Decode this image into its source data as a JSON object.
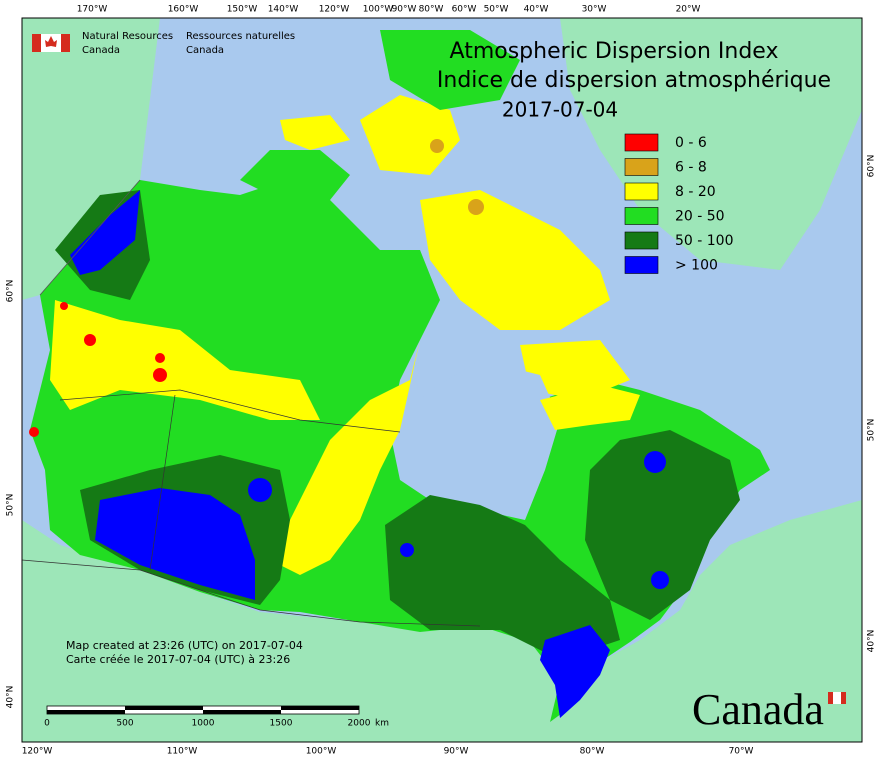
{
  "header": {
    "agency_en": "Natural Resources",
    "agency_en_country": "Canada",
    "agency_fr": "Ressources naturelles",
    "agency_fr_country": "Canada"
  },
  "title": {
    "line1": "Atmospheric Dispersion Index",
    "line2": "Indice de dispersion atmosphérique",
    "date": "2017-07-04"
  },
  "legend": [
    {
      "label": "0 - 6",
      "color": "#ff0000"
    },
    {
      "label": "6 - 8",
      "color": "#d9a31a"
    },
    {
      "label": "8 - 20",
      "color": "#ffff00"
    },
    {
      "label": "20 - 50",
      "color": "#22dd22"
    },
    {
      "label": "50 - 100",
      "color": "#157a15"
    },
    {
      "label": "> 100",
      "color": "#0000ff"
    }
  ],
  "graticule": {
    "top": [
      "170°W",
      "160°W",
      "150°W",
      "140°W",
      "120°W",
      "100°W",
      "90°W",
      "80°W",
      "60°W",
      "50°W",
      "40°W",
      "30°W",
      "20°W"
    ],
    "bottom": [
      "120°W",
      "110°W",
      "100°W",
      "90°W",
      "80°W",
      "70°W"
    ],
    "left": [
      "60°N",
      "50°N",
      "40°N"
    ],
    "right": [
      "60°N",
      "50°N",
      "40°N"
    ]
  },
  "credits": [
    "Map created at 23:26 (UTC) on 2017-07-04",
    "Carte créée le 2017-07-04 (UTC) à 23:26"
  ],
  "scale": {
    "labels": [
      "0",
      "500",
      "1000",
      "1500",
      "2000"
    ],
    "unit": "km"
  },
  "wordmark": "Canada"
}
